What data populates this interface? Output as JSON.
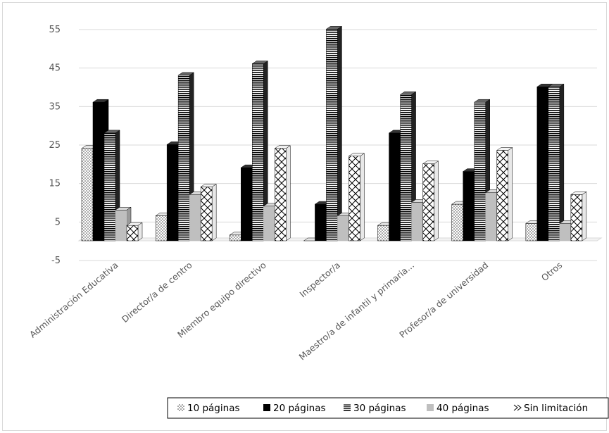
{
  "chart_data": {
    "type": "bar",
    "categories": [
      "Administración Educativa",
      "Director/a de centro",
      "Miembro equipo directivo",
      "Inspector/a",
      "Maestro/a de infantil y primaria...",
      "Profesor/a de universidad",
      "Otros"
    ],
    "series": [
      {
        "name": "10 páginas",
        "values": [
          24,
          6.5,
          1.5,
          0,
          4,
          9.5,
          4.5
        ]
      },
      {
        "name": "20 páginas",
        "values": [
          36,
          25,
          19,
          9.5,
          28,
          18,
          40
        ]
      },
      {
        "name": "30 páginas",
        "values": [
          28,
          43,
          46,
          55,
          38,
          36,
          40
        ]
      },
      {
        "name": "40 páginas",
        "values": [
          8,
          12,
          9,
          6.5,
          10,
          12.5,
          4.5
        ]
      },
      {
        "name": "Sin limitación",
        "values": [
          4,
          14,
          24,
          22,
          20,
          23.5,
          12
        ]
      }
    ],
    "y_ticks": [
      "55",
      "45",
      "35",
      "25",
      "15",
      "5",
      "-5"
    ],
    "ylim": [
      -5,
      55
    ],
    "legend_position": "bottom",
    "grid": true
  }
}
